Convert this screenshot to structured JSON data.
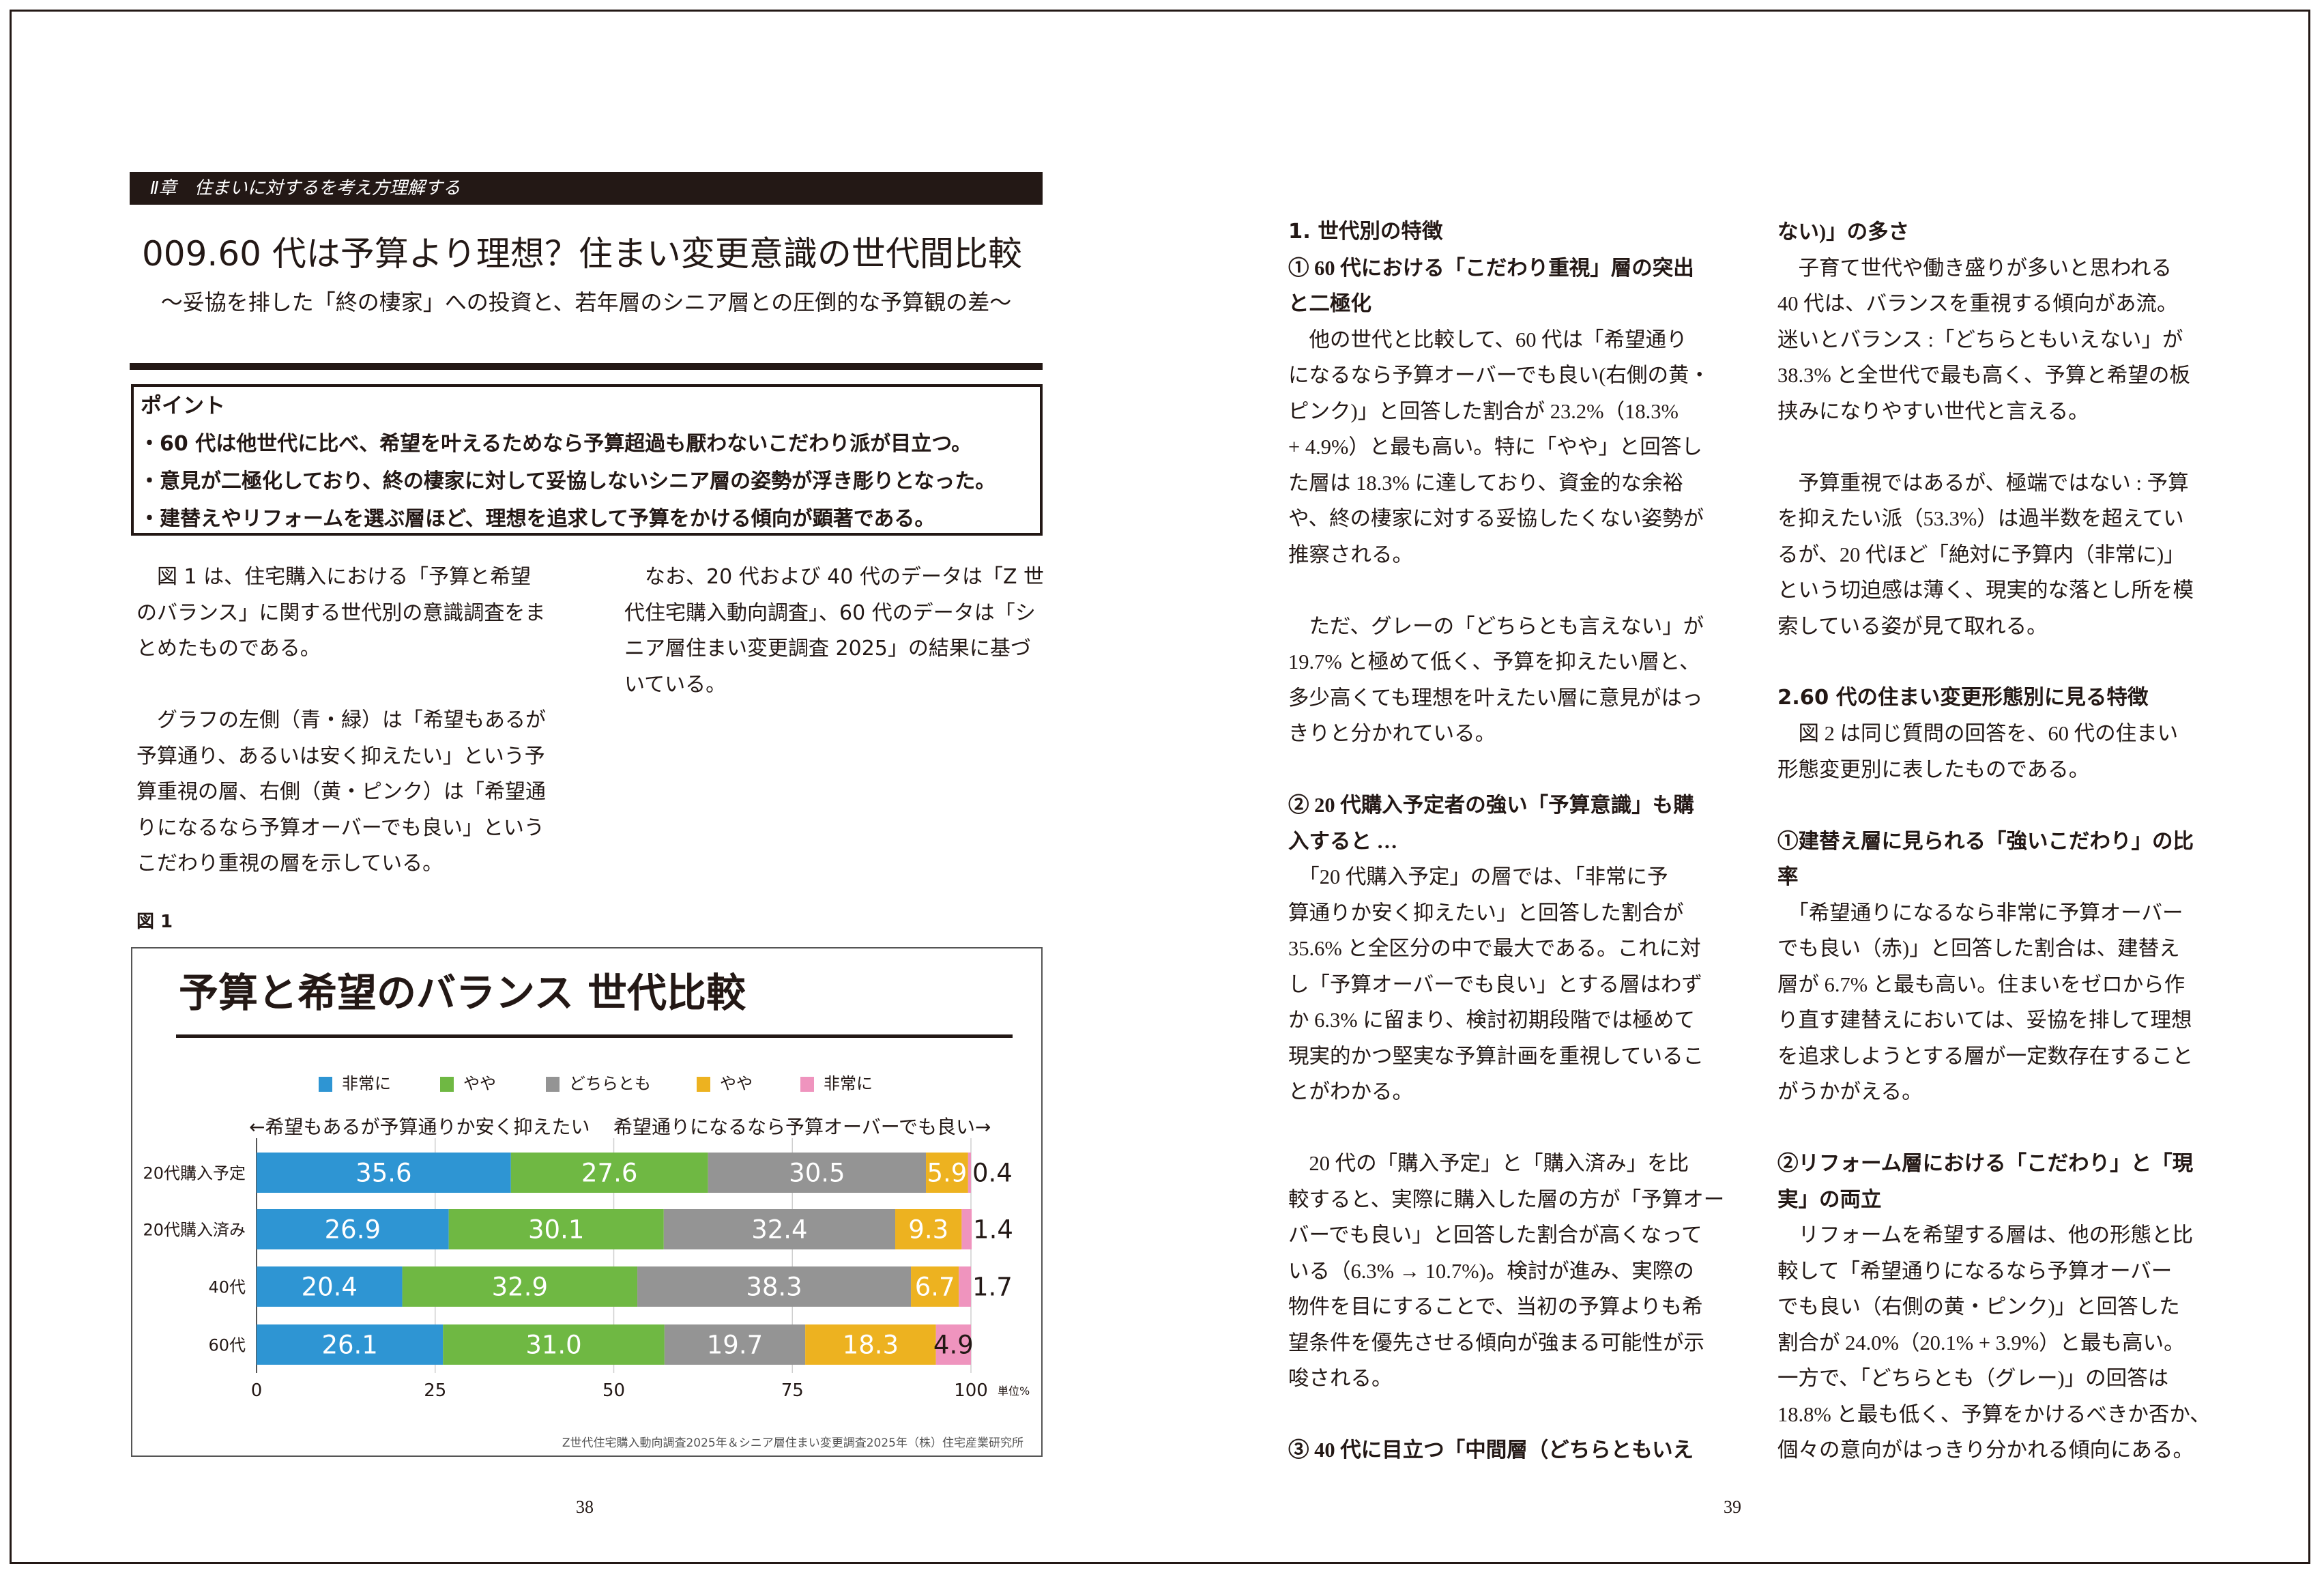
{
  "left_page": {
    "chapter": "Ⅱ章　住まいに対するを考え方理解する",
    "title": "009.60 代は予算より理想？住まい変更意識の世代間比較",
    "subtitle": "〜妥協を排した「終の棲家」への投資と、若年層のシニア層との圧倒的な予算観の差〜",
    "points": {
      "heading": "ポイント",
      "items": [
        "・60 代は他世代に比べ、希望を叶えるためなら予算超過も厭わないこだわり派が目立つ。",
        "・意見が二極化しており、終の棲家に対して妥協しないシニア層の姿勢が浮き彫りとなった。",
        "・建替えやリフォームを選ぶ層ほど、理想を追求して予算をかける傾向が顕著である。"
      ]
    },
    "body_col1": [
      "　図 1 は、住宅購入における「予算と希望",
      "のバランス」に関する世代別の意識調査をま",
      "とめたものである。",
      "",
      "　グラフの左側（青・緑）は「希望もあるが",
      "予算通り、あるいは安く抑えたい」という予",
      "算重視の層、右側（黄・ピンク）は「希望通",
      "りになるなら予算オーバーでも良い」という",
      "こだわり重視の層を示している。"
    ],
    "body_col2": [
      "　なお、20 代および 40 代のデータは「Z 世",
      "代住宅購入動向調査」、60 代のデータは「シ",
      "ニア層住まい変更調査 2025」の結果に基づ",
      "いている。"
    ],
    "figure_label": "図 1",
    "page_number": "38"
  },
  "chart_data": {
    "type": "bar",
    "orientation": "horizontal-stacked",
    "title": "予算と希望のバランス 世代比較",
    "left_direction_label": "←希望もあるが予算通りか安く抑えたい",
    "right_direction_label": "希望通りになるなら予算オーバーでも良い→",
    "categories": [
      "20代購入予定",
      "20代購入済み",
      "40代",
      "60代"
    ],
    "series": [
      {
        "name": "非常に",
        "color": "#2e95d3",
        "values": [
          35.6,
          26.9,
          20.4,
          26.1
        ]
      },
      {
        "name": "やや",
        "color": "#6fb843",
        "values": [
          27.6,
          30.1,
          32.9,
          31.0
        ]
      },
      {
        "name": "どちらとも",
        "color": "#949494",
        "values": [
          30.5,
          32.4,
          38.3,
          19.7
        ]
      },
      {
        "name": "やや",
        "color": "#edb220",
        "values": [
          5.9,
          9.3,
          6.7,
          18.3
        ]
      },
      {
        "name": "非常に",
        "color": "#ef94be",
        "values": [
          0.4,
          1.4,
          1.7,
          4.9
        ]
      }
    ],
    "xlim": [
      0,
      100
    ],
    "xticks": [
      "0",
      "25",
      "50",
      "75",
      "100"
    ],
    "unit_label": "単位%",
    "grid": true,
    "legend_position": "top",
    "source": "Z世代住宅購入動向調査2025年＆シニア層住まい変更調査2025年（株）住宅産業研究所"
  },
  "right_page": {
    "col1": [
      {
        "t": "1. 世代別の特徴",
        "k": "h"
      },
      {
        "t": "① 60 代における「こだわり重視」層の突出",
        "k": "hs"
      },
      {
        "t": "と二極化",
        "k": "hs"
      },
      {
        "t": "　他の世代と比較して、60 代は「希望通り",
        "k": ""
      },
      {
        "t": "になるなら予算オーバーでも良い(右側の黄・",
        "k": ""
      },
      {
        "t": "ピンク)」と回答した割合が 23.2%（18.3%",
        "k": ""
      },
      {
        "t": "+ 4.9%）と最も高い。特に「やや」と回答し",
        "k": ""
      },
      {
        "t": "た層は 18.3% に達しており、資金的な余裕",
        "k": ""
      },
      {
        "t": "や、終の棲家に対する妥協したくない姿勢が",
        "k": ""
      },
      {
        "t": "推察される。",
        "k": ""
      },
      {
        "t": "",
        "k": ""
      },
      {
        "t": "　ただ、グレーの「どちらとも言えない」が",
        "k": ""
      },
      {
        "t": "19.7% と極めて低く、予算を抑えたい層と、",
        "k": ""
      },
      {
        "t": "多少高くても理想を叶えたい層に意見がはっ",
        "k": ""
      },
      {
        "t": "きりと分かれている。",
        "k": ""
      },
      {
        "t": "",
        "k": ""
      },
      {
        "t": "② 20 代購入予定者の強い「予算意識」も購",
        "k": "hs"
      },
      {
        "t": "入すると …",
        "k": "hs"
      },
      {
        "t": "　「20 代購入予定」の層では、「非常に予",
        "k": ""
      },
      {
        "t": "算通りか安く抑えたい」と回答した割合が",
        "k": ""
      },
      {
        "t": "35.6% と全区分の中で最大である。これに対",
        "k": ""
      },
      {
        "t": "し「予算オーバーでも良い」とする層はわず",
        "k": ""
      },
      {
        "t": "か 6.3% に留まり、検討初期段階では極めて",
        "k": ""
      },
      {
        "t": "現実的かつ堅実な予算計画を重視しているこ",
        "k": ""
      },
      {
        "t": "とがわかる。",
        "k": ""
      },
      {
        "t": "",
        "k": ""
      },
      {
        "t": "　20 代の「購入予定」と「購入済み」を比",
        "k": ""
      },
      {
        "t": "較すると、実際に購入した層の方が「予算オー",
        "k": ""
      },
      {
        "t": "バーでも良い」と回答した割合が高くなって",
        "k": ""
      },
      {
        "t": "いる（6.3% → 10.7%)。検討が進み、実際の",
        "k": ""
      },
      {
        "t": "物件を目にすることで、当初の予算よりも希",
        "k": ""
      },
      {
        "t": "望条件を優先させる傾向が強まる可能性が示",
        "k": ""
      },
      {
        "t": "唆される。",
        "k": ""
      },
      {
        "t": "",
        "k": ""
      },
      {
        "t": "③ 40 代に目立つ「中間層（どちらともいえ",
        "k": "hs"
      }
    ],
    "col2": [
      {
        "t": "ない)」の多さ",
        "k": "hs"
      },
      {
        "t": "　子育て世代や働き盛りが多いと思われる",
        "k": ""
      },
      {
        "t": "40 代は、バランスを重視する傾向があ流。",
        "k": ""
      },
      {
        "t": "迷いとバランス :「どちらともいえない」が",
        "k": ""
      },
      {
        "t": "38.3% と全世代で最も高く、予算と希望の板",
        "k": ""
      },
      {
        "t": "挟みになりやすい世代と言える。",
        "k": ""
      },
      {
        "t": "",
        "k": ""
      },
      {
        "t": "　予算重視ではあるが、極端ではない : 予算",
        "k": ""
      },
      {
        "t": "を抑えたい派（53.3%）は過半数を超えてい",
        "k": ""
      },
      {
        "t": "るが、20 代ほど「絶対に予算内（非常に)」",
        "k": ""
      },
      {
        "t": "という切迫感は薄く、現実的な落とし所を模",
        "k": ""
      },
      {
        "t": "索している姿が見て取れる。",
        "k": ""
      },
      {
        "t": "",
        "k": ""
      },
      {
        "t": "2.60 代の住まい変更形態別に見る特徴",
        "k": "h"
      },
      {
        "t": "　図 2 は同じ質問の回答を、60 代の住まい",
        "k": ""
      },
      {
        "t": "形態変更別に表したものである。",
        "k": ""
      },
      {
        "t": "",
        "k": ""
      },
      {
        "t": "①建替え層に見られる「強いこだわり」の比",
        "k": "hs"
      },
      {
        "t": "率",
        "k": "hs"
      },
      {
        "t": "　「希望通りになるなら非常に予算オーバー",
        "k": ""
      },
      {
        "t": "でも良い（赤)」と回答した割合は、建替え",
        "k": ""
      },
      {
        "t": "層が 6.7% と最も高い。住まいをゼロから作",
        "k": ""
      },
      {
        "t": "り直す建替えにおいては、妥協を排して理想",
        "k": ""
      },
      {
        "t": "を追求しようとする層が一定数存在すること",
        "k": ""
      },
      {
        "t": "がうかがえる。",
        "k": ""
      },
      {
        "t": "",
        "k": ""
      },
      {
        "t": "②リフォーム層における「こだわり」と「現",
        "k": "hs"
      },
      {
        "t": "実」の両立",
        "k": "hs"
      },
      {
        "t": "　リフォームを希望する層は、他の形態と比",
        "k": ""
      },
      {
        "t": "較して「希望通りになるなら予算オーバー",
        "k": ""
      },
      {
        "t": "でも良い（右側の黄・ピンク)」と回答した",
        "k": ""
      },
      {
        "t": "割合が 24.0%（20.1% + 3.9%）と最も高い。",
        "k": ""
      },
      {
        "t": "一方で、「どちらとも（グレー)」の回答は",
        "k": ""
      },
      {
        "t": "18.8% と最も低く、予算をかけるべきか否か、",
        "k": ""
      },
      {
        "t": "個々の意向がはっきり分かれる傾向にある。",
        "k": ""
      }
    ],
    "page_number": "39"
  }
}
